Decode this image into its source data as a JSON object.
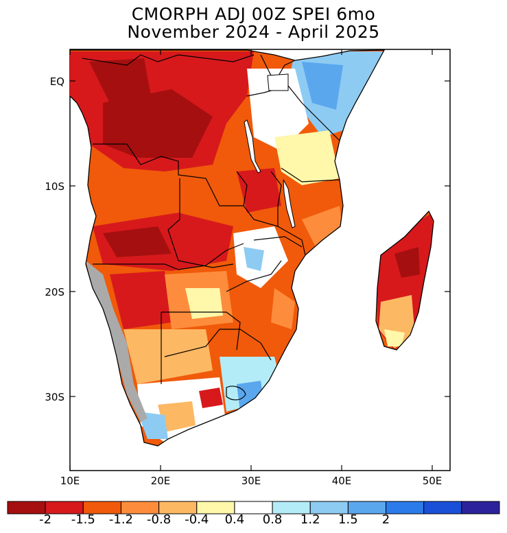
{
  "title": {
    "line1": "CMORPH ADJ 00Z SPEI 6mo",
    "line2": "November 2024 - April 2025"
  },
  "axes": {
    "x_ticks": [
      "10E",
      "20E",
      "30E",
      "40E",
      "50E"
    ],
    "y_ticks": [
      "EQ",
      "10S",
      "20S",
      "30S"
    ],
    "lon_range": [
      10,
      52
    ],
    "lat_range": [
      3.5,
      -37
    ]
  },
  "colorbar": {
    "labels": [
      "-2",
      "-1.5",
      "-1.2",
      "-0.8",
      "-0.4",
      "0.4",
      "0.8",
      "1.2",
      "1.5",
      "2"
    ],
    "colors": [
      "#a50f0f",
      "#d7191c",
      "#f05a0a",
      "#fd8d3c",
      "#fdb863",
      "#fff7aa",
      "#ffffff",
      "#b3ecf7",
      "#8ecbf2",
      "#5aa7ee",
      "#2c7bea",
      "#1a50d8",
      "#2c239c"
    ]
  },
  "legend_note": "no-data areas shown in gray"
}
